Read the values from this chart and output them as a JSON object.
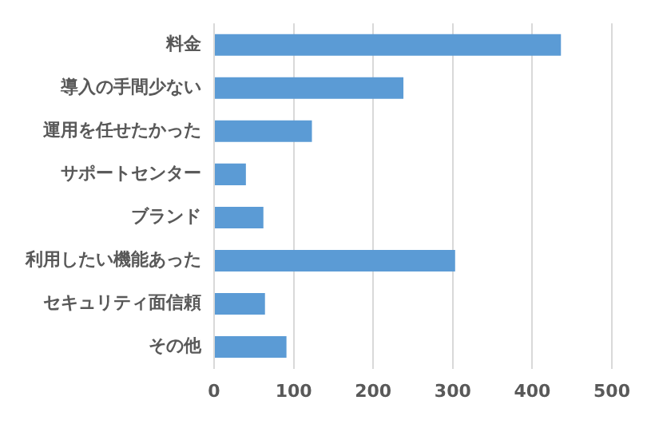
{
  "chart_data": {
    "type": "bar",
    "orientation": "horizontal",
    "categories": [
      "料金",
      "導入の手間少ない",
      "運用を任せたかった",
      "サポートセンター",
      "ブランド",
      "利用したい機能あった",
      "セキュリティ面信頼",
      "その他"
    ],
    "values": [
      436,
      238,
      123,
      40,
      62,
      303,
      64,
      91
    ],
    "color": "#5b9bd5",
    "xlim": [
      0,
      500
    ],
    "xticks": [
      0,
      100,
      200,
      300,
      400,
      500
    ],
    "grid": "x",
    "legend": false
  }
}
